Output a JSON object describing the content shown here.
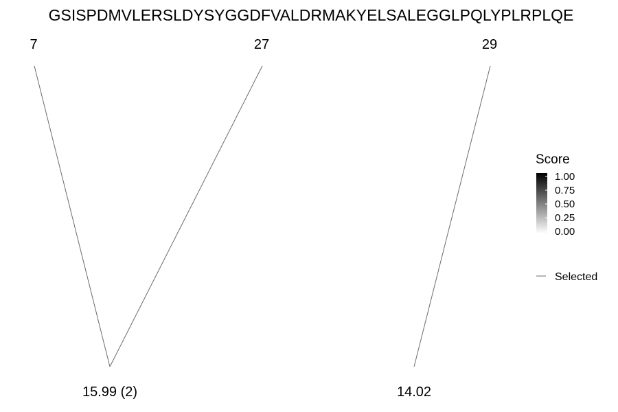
{
  "sequence": "GSISPDMVLERSLDYSYGGDFVALDRMAKYELSALEGGLPQLYPLRPLQE",
  "sites": [
    {
      "label": "7",
      "position": 7
    },
    {
      "label": "27",
      "position": 27
    },
    {
      "label": "29",
      "position": 29
    }
  ],
  "masses": [
    {
      "label": "15.99 (2)",
      "value": 15.99,
      "sites": [
        7,
        27
      ]
    },
    {
      "label": "14.02",
      "value": 14.02,
      "sites": [
        29
      ]
    }
  ],
  "connections": [
    {
      "site": 7,
      "mass": "15.99 (2)",
      "score": 0.0,
      "selected": true
    },
    {
      "site": 27,
      "mass": "15.99 (2)",
      "score": 0.0,
      "selected": true
    },
    {
      "site": 29,
      "mass": "14.02",
      "score": 0.0,
      "selected": true
    }
  ],
  "legend": {
    "score_title": "Score",
    "ticks": [
      "1.00",
      "0.75",
      "0.50",
      "0.25",
      "0.00"
    ],
    "gradient_colors": [
      "#000000",
      "#ffffff"
    ],
    "line_label": "Selected",
    "line_color": "#6b6b6b"
  }
}
